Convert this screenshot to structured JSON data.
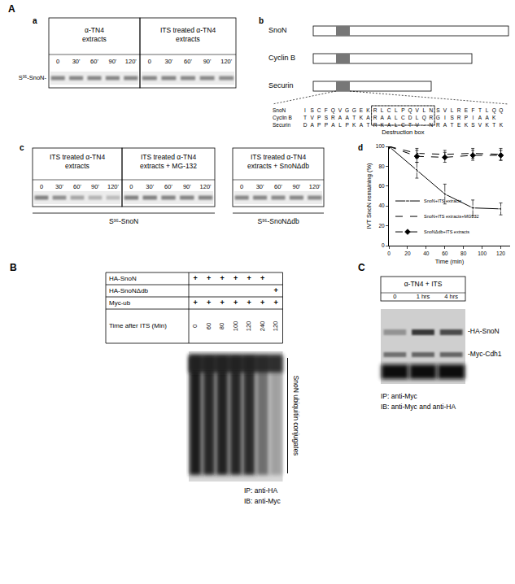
{
  "panel_labels": {
    "A": "A",
    "B": "B",
    "C": "C"
  },
  "panel_A": {
    "subpanel_labels": {
      "a": "a",
      "b": "b",
      "c": "c",
      "d": "d"
    },
    "a": {
      "groups": [
        {
          "title": [
            "α-TN4",
            "extracts"
          ],
          "times": [
            "0",
            "30'",
            "60'",
            "90'",
            "120'"
          ]
        },
        {
          "title": [
            "ITS treated α-TN4",
            "extracts"
          ],
          "times": [
            "0",
            "30'",
            "60'",
            "90'",
            "120'"
          ]
        }
      ],
      "band_label": "S³⁵-SnoN-"
    },
    "b": {
      "proteins": [
        "SnoN",
        "Cyclin B",
        "Securin"
      ],
      "sequences": [
        "I S C F Q V G G E K R L C L P Q V L N S V L R E F T L Q Q",
        "T V P S R A A T K A R A A L C D L Q R G I S R P I A A K",
        "D A P P A L P K A T R K A L C T V - N R A T E K S V K T K"
      ],
      "box_label": "Destruction box"
    },
    "c": {
      "groups": [
        {
          "title": [
            "ITS treated α-TN4",
            "extracts"
          ],
          "times": [
            "0",
            "30'",
            "60'",
            "90'",
            "120'"
          ]
        },
        {
          "title": [
            "ITS treated α-TN4",
            "extracts + MG-132"
          ],
          "times": [
            "0",
            "30'",
            "60'",
            "90'",
            "120'"
          ]
        },
        {
          "title": [
            "ITS treated α-TN4",
            "extracts + SnoNΔdb"
          ],
          "times": [
            "0",
            "30'",
            "60'",
            "90'",
            "120'"
          ]
        }
      ],
      "band_labels": [
        "S³⁵-SnoN",
        "S³⁵-SnoNΔdb"
      ]
    }
  },
  "chart_data": {
    "type": "line",
    "x_label": "Time (min)",
    "y_label": "IVT SnoN remaining (%)",
    "x": [
      0,
      30,
      60,
      90,
      120
    ],
    "xlim": [
      0,
      130
    ],
    "xticks": [
      0,
      20,
      40,
      60,
      80,
      100,
      120
    ],
    "ylim": [
      0,
      100
    ],
    "yticks": [
      0,
      20,
      40,
      60,
      80,
      100
    ],
    "grid": false,
    "legend": "lower left",
    "series": [
      {
        "name": "SnoN+ITS extracts",
        "color": "#000000",
        "marker": "circle-open",
        "line_style": "solid",
        "values": [
          100,
          76,
          52,
          38,
          37
        ],
        "error": [
          0,
          8,
          10,
          8,
          6
        ]
      },
      {
        "name": "SnoN+ITS extracts+MG132",
        "color": "#000000",
        "marker": "square-open",
        "line_style": "dashed",
        "values": [
          100,
          93,
          92,
          93,
          92
        ],
        "error": [
          0,
          5,
          4,
          5,
          6
        ]
      },
      {
        "name": "SnoNΔdb+ITS extracts",
        "color": "#000000",
        "marker": "diamond",
        "line_style": "dashed",
        "values": [
          100,
          90,
          89,
          91,
          91
        ],
        "error": [
          0,
          6,
          5,
          5,
          5
        ]
      }
    ]
  },
  "panel_B": {
    "rows": [
      {
        "label": "HA-SnoN",
        "cells": [
          "+",
          "+",
          "+",
          "+",
          "+",
          "+",
          null
        ]
      },
      {
        "label": "HA-SnoNΔdb",
        "cells": [
          null,
          null,
          null,
          null,
          null,
          null,
          "+"
        ]
      },
      {
        "label": "Myc-ub",
        "cells": [
          "+",
          "+",
          "+",
          "+",
          "+",
          "+",
          "+"
        ]
      },
      {
        "label": "Time after ITS (Min)",
        "cells": [
          "0",
          "60",
          "80",
          "100",
          "120",
          "240",
          "120"
        ]
      }
    ],
    "bracket_label": "SnoN ubiquitin conjugates",
    "footer": [
      "IP:   anti-HA",
      "IB:  anti-Myc"
    ]
  },
  "panel_C": {
    "header": "α-TN4 + ITS",
    "times": [
      "0",
      "1 hrs",
      "4 hrs"
    ],
    "band_labels": [
      "-HA-SnoN",
      "-Myc-Cdh1"
    ],
    "footer": [
      "IP:   anti-Myc",
      "IB:  anti-Myc and anti-HA"
    ]
  }
}
